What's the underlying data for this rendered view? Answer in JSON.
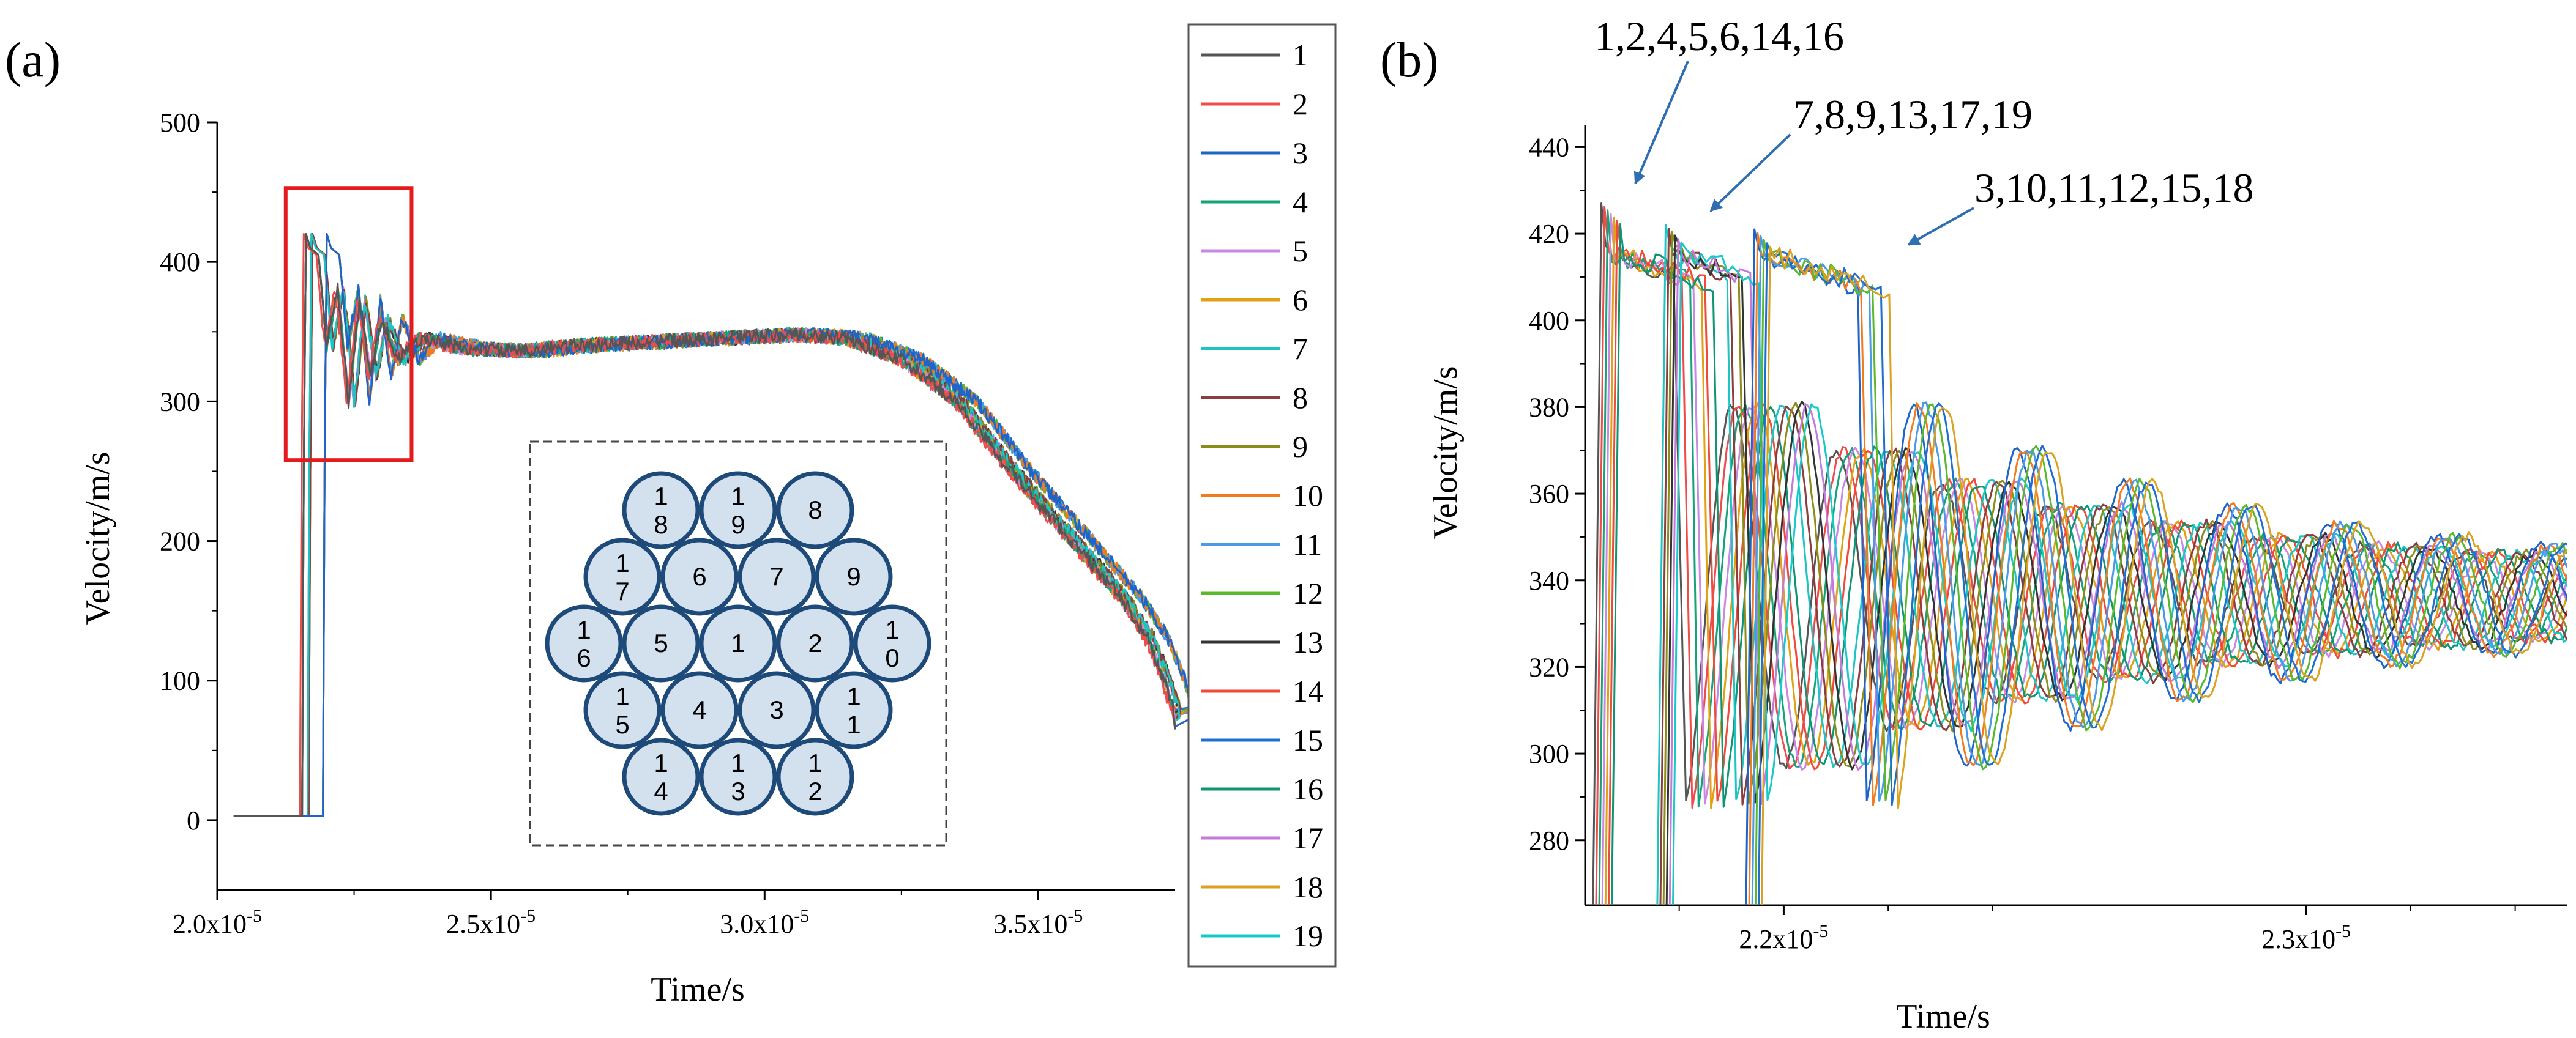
{
  "figure": {
    "panel_a_label": "(a)",
    "panel_b_label": "(b)",
    "series_colors": [
      "#555555",
      "#ef4b4b",
      "#1f64c8",
      "#17a37a",
      "#c889e3",
      "#e0a213",
      "#1cc4c4",
      "#8a3e3e",
      "#8c8c19",
      "#f27a1f",
      "#4b9ae6",
      "#5ab82d",
      "#333333",
      "#f04a3a",
      "#1f6fd1",
      "#0f9474",
      "#c37ad9",
      "#dba222",
      "#19c9c9"
    ],
    "highlight_color": "#e41a1c"
  },
  "chart_data": [
    {
      "id": "a",
      "type": "line",
      "title": "",
      "xlabel": "Time/s",
      "ylabel": "Velocity/m/s",
      "xlim": [
        2e-05,
        3.75e-05
      ],
      "ylim": [
        -50,
        500
      ],
      "x_ticks": [
        "2.0x10^-5",
        "2.5x10^-5",
        "3.0x10^-5",
        "3.5x10^-5"
      ],
      "x_tick_values": [
        2e-05,
        2.5e-05,
        3e-05,
        3.5e-05
      ],
      "y_ticks": [
        0,
        100,
        200,
        300,
        400,
        500
      ],
      "legend": [
        "1",
        "2",
        "3",
        "4",
        "5",
        "6",
        "7",
        "8",
        "9",
        "10",
        "11",
        "12",
        "13",
        "14",
        "15",
        "16",
        "17",
        "18",
        "19"
      ],
      "series_template": {
        "x_us": [
          20.3,
          21.55,
          21.58,
          21.62,
          21.7,
          21.85,
          22.0,
          22.2,
          22.4,
          22.6,
          22.8,
          23.0,
          23.3,
          23.7,
          24.5,
          25.5,
          26.5,
          27.5,
          28.5,
          29.5,
          30.5,
          31.5,
          32.5,
          33.5,
          34.5,
          35.5,
          36.5,
          37.0,
          37.3,
          37.5
        ],
        "y": [
          3,
          3,
          250,
          420,
          410,
          405,
          340,
          380,
          300,
          372,
          318,
          360,
          330,
          345,
          338,
          336,
          340,
          342,
          344,
          346,
          348,
          345,
          330,
          300,
          250,
          205,
          160,
          130,
          100,
          75
        ]
      },
      "series_time_offsets_us": [
        0.0,
        -0.04,
        0.38,
        0.0,
        0.0,
        0.0,
        0.1,
        0.12,
        0.12,
        0.38,
        0.38,
        0.38,
        0.12,
        0.0,
        0.38,
        0.0,
        0.1,
        0.38,
        0.1
      ],
      "inset": {
        "description_labels": [
          [
            "1",
            "8"
          ],
          [
            "1",
            "9"
          ],
          [
            "8"
          ],
          [
            "1",
            "7"
          ],
          [
            "6"
          ],
          [
            "7"
          ],
          [
            "9"
          ],
          [
            "1",
            "6"
          ],
          [
            "5"
          ],
          [
            "1"
          ],
          [
            "2"
          ],
          [
            "1",
            "0"
          ],
          [
            "1",
            "5"
          ],
          [
            "4"
          ],
          [
            "3"
          ],
          [
            "1",
            "1"
          ],
          [
            "1",
            "4"
          ],
          [
            "1",
            "3"
          ],
          [
            "1",
            "2"
          ]
        ],
        "rows": [
          3,
          4,
          5,
          4,
          3
        ]
      },
      "highlight_box": {
        "x_range_us": [
          21.25,
          23.55
        ],
        "y_range": [
          258,
          453
        ]
      }
    },
    {
      "id": "b",
      "type": "line",
      "title": "",
      "xlabel": "Time/s",
      "ylabel": "Velocity/m/s",
      "xlim_us": [
        21.62,
        23.5
      ],
      "ylim": [
        265,
        445
      ],
      "x_ticks": [
        "2.2x10^-5",
        "2.3x10^-5"
      ],
      "x_tick_values": [
        2.2e-05,
        2.3e-05
      ],
      "y_ticks": [
        280,
        300,
        320,
        340,
        360,
        380,
        400,
        420,
        440
      ],
      "groups": [
        {
          "label": "1,2,4,5,6,14,16",
          "series": [
            1,
            2,
            4,
            5,
            6,
            14,
            16
          ],
          "rise_us": 21.66,
          "peak": 427,
          "plateau_end_us": 21.84
        },
        {
          "label": "7,8,9,13,17,19",
          "series": [
            7,
            8,
            9,
            13,
            17,
            19
          ],
          "rise_us": 21.78,
          "peak": 422,
          "plateau_end_us": 21.93
        },
        {
          "label": "3,10,11,12,15,18",
          "series": [
            3,
            10,
            11,
            12,
            15,
            18
          ],
          "rise_us": 21.95,
          "peak": 421,
          "plateau_end_us": 22.18
        }
      ],
      "oscillation": {
        "mean": 336,
        "amplitude": 44,
        "period_us": 0.2,
        "decay_per_us": 1.55
      }
    }
  ]
}
